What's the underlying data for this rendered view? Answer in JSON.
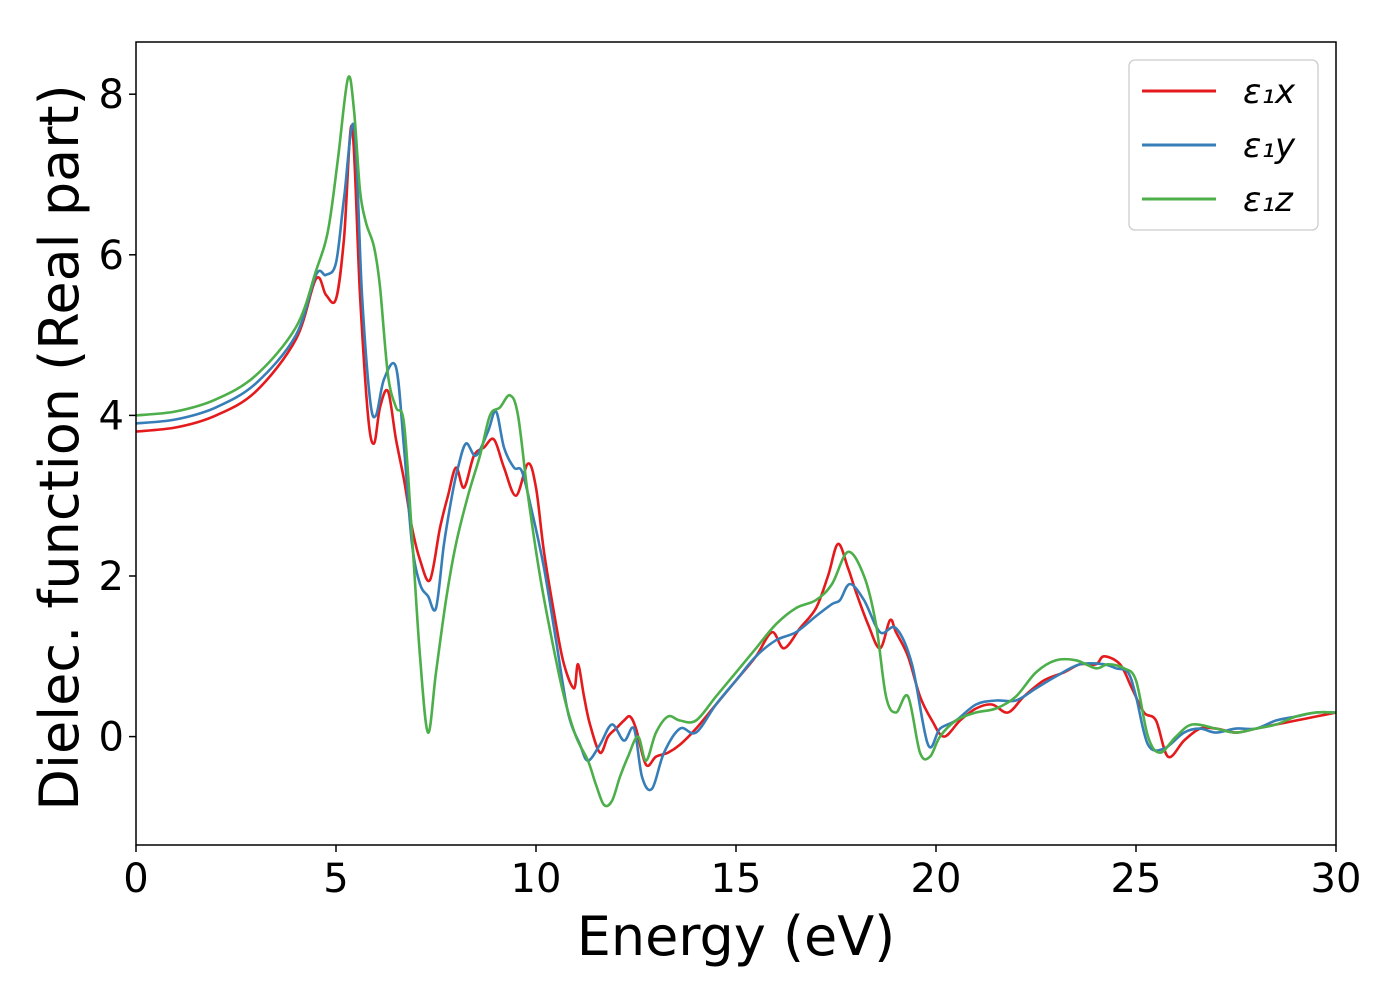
{
  "chart_data": {
    "type": "line",
    "xlabel": "Energy (eV)",
    "ylabel": "Dielec. function (Real part)",
    "xlim": [
      0,
      30
    ],
    "ylim": [
      -1.35,
      8.65
    ],
    "xticks": [
      0,
      5,
      10,
      15,
      20,
      25,
      30
    ],
    "xtick_labels": [
      "0",
      "5",
      "10",
      "15",
      "20",
      "25",
      "30"
    ],
    "yticks": [
      0,
      2,
      4,
      6,
      8
    ],
    "ytick_labels": [
      "0",
      "2",
      "4",
      "6",
      "8"
    ],
    "grid": false,
    "legend_position": "top-right",
    "series": [
      {
        "name": "ε₁x",
        "color": "#e41a1c",
        "points": [
          [
            0,
            3.8
          ],
          [
            1,
            3.85
          ],
          [
            2,
            4.0
          ],
          [
            3,
            4.3
          ],
          [
            4,
            4.95
          ],
          [
            4.5,
            5.7
          ],
          [
            4.75,
            5.5
          ],
          [
            5.0,
            5.45
          ],
          [
            5.2,
            6.2
          ],
          [
            5.4,
            7.6
          ],
          [
            5.6,
            5.5
          ],
          [
            5.8,
            4.0
          ],
          [
            5.95,
            3.65
          ],
          [
            6.1,
            4.1
          ],
          [
            6.3,
            4.3
          ],
          [
            6.5,
            3.7
          ],
          [
            6.7,
            3.2
          ],
          [
            6.9,
            2.6
          ],
          [
            7.1,
            2.2
          ],
          [
            7.35,
            1.95
          ],
          [
            7.6,
            2.6
          ],
          [
            7.8,
            3.0
          ],
          [
            8.0,
            3.35
          ],
          [
            8.2,
            3.1
          ],
          [
            8.45,
            3.5
          ],
          [
            8.7,
            3.6
          ],
          [
            8.95,
            3.7
          ],
          [
            9.2,
            3.35
          ],
          [
            9.5,
            3.0
          ],
          [
            9.8,
            3.4
          ],
          [
            10.0,
            3.1
          ],
          [
            10.2,
            2.3
          ],
          [
            10.5,
            1.4
          ],
          [
            10.7,
            0.9
          ],
          [
            10.95,
            0.6
          ],
          [
            11.05,
            0.9
          ],
          [
            11.2,
            0.5
          ],
          [
            11.35,
            0.15
          ],
          [
            11.6,
            -0.2
          ],
          [
            11.8,
            0.0
          ],
          [
            12.0,
            0.1
          ],
          [
            12.2,
            0.2
          ],
          [
            12.35,
            0.25
          ],
          [
            12.5,
            0.1
          ],
          [
            12.75,
            -0.35
          ],
          [
            13.0,
            -0.25
          ],
          [
            13.3,
            -0.2
          ],
          [
            13.6,
            -0.1
          ],
          [
            14.0,
            0.1
          ],
          [
            14.5,
            0.4
          ],
          [
            15.0,
            0.7
          ],
          [
            15.5,
            1.0
          ],
          [
            15.9,
            1.3
          ],
          [
            16.2,
            1.1
          ],
          [
            16.6,
            1.35
          ],
          [
            17.0,
            1.6
          ],
          [
            17.3,
            2.0
          ],
          [
            17.55,
            2.4
          ],
          [
            17.8,
            2.1
          ],
          [
            18.0,
            1.8
          ],
          [
            18.3,
            1.4
          ],
          [
            18.6,
            1.1
          ],
          [
            18.85,
            1.45
          ],
          [
            19.0,
            1.3
          ],
          [
            19.3,
            1.0
          ],
          [
            19.6,
            0.5
          ],
          [
            19.9,
            0.2
          ],
          [
            20.2,
            0.0
          ],
          [
            20.6,
            0.2
          ],
          [
            21.0,
            0.35
          ],
          [
            21.4,
            0.4
          ],
          [
            21.8,
            0.3
          ],
          [
            22.2,
            0.5
          ],
          [
            22.7,
            0.7
          ],
          [
            23.2,
            0.8
          ],
          [
            23.6,
            0.9
          ],
          [
            24.0,
            0.9
          ],
          [
            24.2,
            1.0
          ],
          [
            24.6,
            0.9
          ],
          [
            24.9,
            0.6
          ],
          [
            25.2,
            0.3
          ],
          [
            25.5,
            0.2
          ],
          [
            25.8,
            -0.25
          ],
          [
            26.2,
            -0.05
          ],
          [
            26.6,
            0.1
          ],
          [
            27.0,
            0.1
          ],
          [
            27.5,
            0.05
          ],
          [
            28.0,
            0.1
          ],
          [
            28.5,
            0.15
          ],
          [
            29.0,
            0.2
          ],
          [
            29.5,
            0.25
          ],
          [
            30.0,
            0.3
          ]
        ]
      },
      {
        "name": "ε₁y",
        "color": "#377eb8",
        "points": [
          [
            0,
            3.9
          ],
          [
            1,
            3.95
          ],
          [
            2,
            4.1
          ],
          [
            3,
            4.4
          ],
          [
            4,
            5.0
          ],
          [
            4.5,
            5.75
          ],
          [
            4.75,
            5.75
          ],
          [
            5.0,
            5.9
          ],
          [
            5.2,
            6.7
          ],
          [
            5.45,
            7.6
          ],
          [
            5.65,
            5.5
          ],
          [
            5.85,
            4.2
          ],
          [
            6.0,
            4.0
          ],
          [
            6.2,
            4.45
          ],
          [
            6.5,
            4.6
          ],
          [
            6.7,
            3.6
          ],
          [
            6.9,
            2.4
          ],
          [
            7.1,
            1.9
          ],
          [
            7.3,
            1.75
          ],
          [
            7.5,
            1.6
          ],
          [
            7.7,
            2.4
          ],
          [
            7.9,
            3.0
          ],
          [
            8.05,
            3.35
          ],
          [
            8.25,
            3.65
          ],
          [
            8.5,
            3.5
          ],
          [
            8.8,
            3.8
          ],
          [
            9.0,
            4.05
          ],
          [
            9.2,
            3.6
          ],
          [
            9.45,
            3.35
          ],
          [
            9.65,
            3.3
          ],
          [
            9.9,
            2.8
          ],
          [
            10.2,
            2.1
          ],
          [
            10.5,
            1.2
          ],
          [
            10.8,
            0.3
          ],
          [
            11.1,
            -0.1
          ],
          [
            11.3,
            -0.3
          ],
          [
            11.6,
            -0.1
          ],
          [
            11.9,
            0.15
          ],
          [
            12.2,
            -0.05
          ],
          [
            12.45,
            0.1
          ],
          [
            12.65,
            -0.5
          ],
          [
            12.9,
            -0.65
          ],
          [
            13.2,
            -0.2
          ],
          [
            13.6,
            0.1
          ],
          [
            14.0,
            0.05
          ],
          [
            14.5,
            0.4
          ],
          [
            15.0,
            0.7
          ],
          [
            15.5,
            1.0
          ],
          [
            16.0,
            1.2
          ],
          [
            16.5,
            1.3
          ],
          [
            17.0,
            1.5
          ],
          [
            17.4,
            1.65
          ],
          [
            17.6,
            1.7
          ],
          [
            17.85,
            1.9
          ],
          [
            18.2,
            1.7
          ],
          [
            18.6,
            1.3
          ],
          [
            19.0,
            1.35
          ],
          [
            19.4,
            0.9
          ],
          [
            19.8,
            -0.1
          ],
          [
            20.1,
            0.1
          ],
          [
            20.5,
            0.2
          ],
          [
            21.0,
            0.4
          ],
          [
            21.5,
            0.45
          ],
          [
            22.0,
            0.45
          ],
          [
            22.5,
            0.6
          ],
          [
            23.0,
            0.75
          ],
          [
            23.6,
            0.9
          ],
          [
            24.2,
            0.9
          ],
          [
            24.5,
            0.85
          ],
          [
            24.8,
            0.8
          ],
          [
            25.0,
            0.5
          ],
          [
            25.3,
            -0.1
          ],
          [
            25.7,
            -0.15
          ],
          [
            26.2,
            0.05
          ],
          [
            26.6,
            0.1
          ],
          [
            27.0,
            0.05
          ],
          [
            27.5,
            0.1
          ],
          [
            28.0,
            0.1
          ],
          [
            28.5,
            0.2
          ],
          [
            29.0,
            0.25
          ],
          [
            29.5,
            0.3
          ],
          [
            30.0,
            0.3
          ]
        ]
      },
      {
        "name": "ε₁z",
        "color": "#4daf4a",
        "points": [
          [
            0,
            4.0
          ],
          [
            1,
            4.05
          ],
          [
            2,
            4.2
          ],
          [
            3,
            4.5
          ],
          [
            4,
            5.1
          ],
          [
            4.5,
            5.8
          ],
          [
            4.8,
            6.3
          ],
          [
            5.05,
            7.2
          ],
          [
            5.3,
            8.2
          ],
          [
            5.45,
            7.8
          ],
          [
            5.6,
            6.8
          ],
          [
            5.75,
            6.4
          ],
          [
            5.95,
            6.1
          ],
          [
            6.1,
            5.6
          ],
          [
            6.3,
            4.5
          ],
          [
            6.5,
            4.1
          ],
          [
            6.7,
            3.9
          ],
          [
            6.9,
            2.5
          ],
          [
            7.1,
            1.0
          ],
          [
            7.3,
            0.05
          ],
          [
            7.5,
            0.8
          ],
          [
            7.75,
            1.7
          ],
          [
            8.0,
            2.4
          ],
          [
            8.3,
            3.0
          ],
          [
            8.6,
            3.5
          ],
          [
            8.85,
            4.0
          ],
          [
            9.1,
            4.1
          ],
          [
            9.35,
            4.25
          ],
          [
            9.55,
            4.0
          ],
          [
            9.8,
            3.0
          ],
          [
            10.1,
            2.0
          ],
          [
            10.4,
            1.2
          ],
          [
            10.7,
            0.5
          ],
          [
            11.0,
            0.0
          ],
          [
            11.3,
            -0.3
          ],
          [
            11.5,
            -0.6
          ],
          [
            11.7,
            -0.85
          ],
          [
            11.9,
            -0.8
          ],
          [
            12.1,
            -0.5
          ],
          [
            12.3,
            -0.25
          ],
          [
            12.55,
            0.0
          ],
          [
            12.75,
            -0.3
          ],
          [
            13.0,
            0.05
          ],
          [
            13.3,
            0.25
          ],
          [
            13.6,
            0.2
          ],
          [
            14.0,
            0.2
          ],
          [
            14.5,
            0.5
          ],
          [
            15.0,
            0.8
          ],
          [
            15.5,
            1.1
          ],
          [
            16.0,
            1.4
          ],
          [
            16.5,
            1.6
          ],
          [
            17.0,
            1.7
          ],
          [
            17.4,
            1.9
          ],
          [
            17.8,
            2.3
          ],
          [
            18.2,
            2.0
          ],
          [
            18.5,
            1.4
          ],
          [
            18.75,
            0.5
          ],
          [
            19.0,
            0.3
          ],
          [
            19.3,
            0.5
          ],
          [
            19.6,
            -0.2
          ],
          [
            19.85,
            -0.25
          ],
          [
            20.1,
            0.0
          ],
          [
            20.5,
            0.2
          ],
          [
            21.0,
            0.3
          ],
          [
            21.5,
            0.35
          ],
          [
            22.0,
            0.5
          ],
          [
            22.5,
            0.8
          ],
          [
            23.0,
            0.95
          ],
          [
            23.5,
            0.95
          ],
          [
            24.0,
            0.85
          ],
          [
            24.3,
            0.9
          ],
          [
            24.7,
            0.85
          ],
          [
            25.0,
            0.7
          ],
          [
            25.3,
            0.0
          ],
          [
            25.6,
            -0.2
          ],
          [
            26.0,
            0.0
          ],
          [
            26.4,
            0.15
          ],
          [
            27.0,
            0.1
          ],
          [
            27.5,
            0.05
          ],
          [
            28.0,
            0.1
          ],
          [
            28.5,
            0.15
          ],
          [
            29.0,
            0.25
          ],
          [
            29.5,
            0.3
          ],
          [
            30.0,
            0.3
          ]
        ]
      }
    ]
  }
}
